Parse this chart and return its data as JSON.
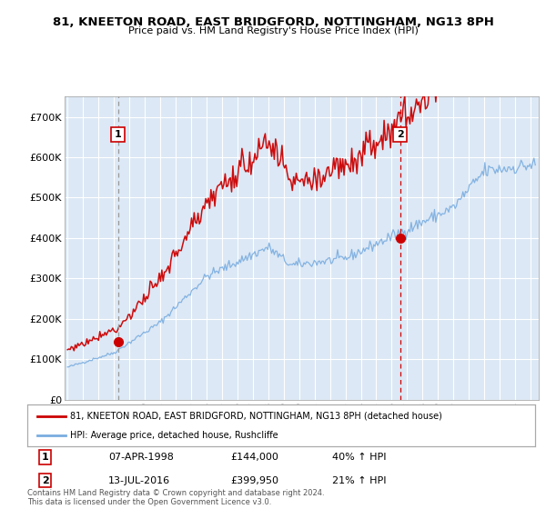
{
  "title": "81, KNEETON ROAD, EAST BRIDGFORD, NOTTINGHAM, NG13 8PH",
  "subtitle": "Price paid vs. HM Land Registry's House Price Index (HPI)",
  "legend_line1": "81, KNEETON ROAD, EAST BRIDGFORD, NOTTINGHAM, NG13 8PH (detached house)",
  "legend_line2": "HPI: Average price, detached house, Rushcliffe",
  "annotation1_date": "07-APR-1998",
  "annotation1_price": "£144,000",
  "annotation1_hpi": "40% ↑ HPI",
  "annotation1_year": 1998.27,
  "annotation1_value": 144000,
  "annotation2_date": "13-JUL-2016",
  "annotation2_price": "£399,950",
  "annotation2_hpi": "21% ↑ HPI",
  "annotation2_year": 2016.54,
  "annotation2_value": 399950,
  "yticks": [
    0,
    100000,
    200000,
    300000,
    400000,
    500000,
    600000,
    700000
  ],
  "ytick_labels": [
    "£0",
    "£100K",
    "£200K",
    "£300K",
    "£400K",
    "£500K",
    "£600K",
    "£700K"
  ],
  "ylim": [
    0,
    750000
  ],
  "xlim_start": 1994.8,
  "xlim_end": 2025.5,
  "red_color": "#cc0000",
  "blue_color": "#7aade0",
  "vline1_color": "#999999",
  "vline2_color": "#cc0000",
  "plot_bg_color": "#dce8f5",
  "bg_color": "#ffffff",
  "grid_color": "#ffffff",
  "footer": "Contains HM Land Registry data © Crown copyright and database right 2024.\nThis data is licensed under the Open Government Licence v3.0."
}
